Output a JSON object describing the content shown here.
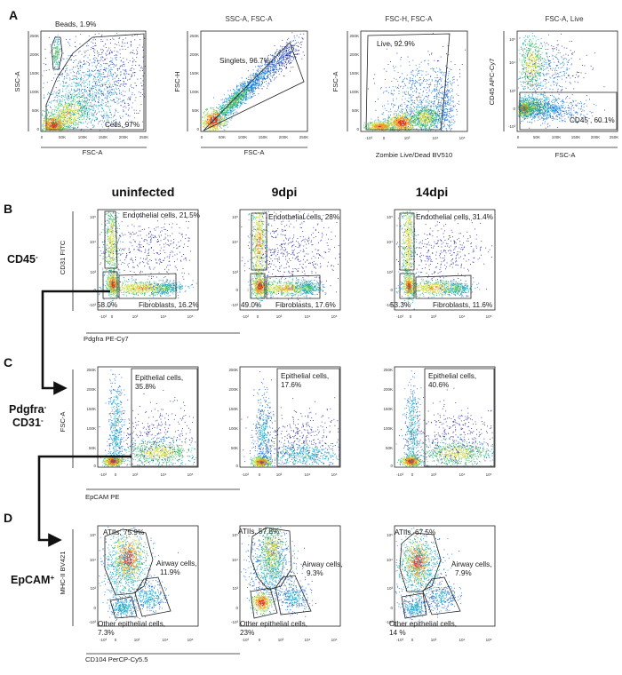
{
  "colors": {
    "frame": "#222222",
    "gate": "#222222",
    "dot": "#2233aa",
    "hot": "#ff2200"
  },
  "panel_A": {
    "letter": "A",
    "plot1": {
      "ylabel": "SSC-A",
      "xlabel": "FSC-A",
      "gate_beads": "Beads, 1.9%",
      "gate_cells": "Cells, 97%",
      "xticks": [
        "0",
        "50K",
        "100K",
        "150K",
        "200K",
        "250K"
      ],
      "yticks": [
        "250K",
        "200K",
        "150K",
        "100K",
        "50K",
        "0"
      ]
    },
    "plot2": {
      "title": "SSC-A, FSC-A",
      "ylabel": "FSC-H",
      "xlabel": "FSC-A",
      "gate_singlets": "Singlets, 96.7%",
      "xticks": [
        "0",
        "50K",
        "100K",
        "150K",
        "200K",
        "250K"
      ],
      "yticks": [
        "250K",
        "200K",
        "150K",
        "100K",
        "50K",
        "0"
      ]
    },
    "plot3": {
      "title": "FSC-H, FSC-A",
      "ylabel": "FSC-A",
      "xlabel": "Zombie Live/Dead BV510",
      "gate_live": "Live, 92.9%",
      "xticks": [
        "-10³",
        "0",
        "10³",
        "10⁴",
        "10⁵"
      ],
      "yticks": [
        "250K",
        "200K",
        "150K",
        "100K",
        "50K",
        "0"
      ]
    },
    "plot4": {
      "title": "FSC-A, Live",
      "ylabel": "CD45  APC-Cy7",
      "xlabel": "FSC-A",
      "gate_cd45_prefix": "CD45",
      "gate_cd45_sup": "-",
      "gate_cd45_value": ", 60.1%",
      "xticks": [
        "0",
        "50K",
        "100K",
        "150K",
        "200K",
        "250K"
      ],
      "yticks": [
        "10⁵",
        "10⁴",
        "10³",
        "0",
        "-10³"
      ]
    }
  },
  "columns": [
    "uninfected",
    "9dpi",
    "14dpi"
  ],
  "panel_B": {
    "letter": "B",
    "row_label": "CD45",
    "row_label_sup": "-",
    "ylabel": "CD31 FITC",
    "xlabel": "Pdgfra PE-Cy7",
    "xticks": [
      "-10³",
      "0",
      "10³",
      "10⁴",
      "10⁵"
    ],
    "yticks": [
      "10⁵",
      "10⁴",
      "10³",
      "0",
      "-10³"
    ],
    "plots": [
      {
        "endothelial": "Endothelial cells, 21.5%",
        "fibroblasts": "Fibroblasts, 16.2%",
        "dn": "58.0%"
      },
      {
        "endothelial": "Endothelial cells, 28%",
        "fibroblasts": "Fibroblasts, 17.6%",
        "dn": "49.0%"
      },
      {
        "endothelial": "Endothelial cells, 31.4%",
        "fibroblasts": "Fibroblasts, 11.6%",
        "dn": "53.3%"
      }
    ]
  },
  "panel_C": {
    "letter": "C",
    "row_label_1": "Pdgfra",
    "row_label_1_sup": "-",
    "row_label_2": "CD31",
    "row_label_2_sup": "-",
    "ylabel": "FSC-A",
    "xlabel": "EpCAM PE",
    "xticks": [
      "-10³",
      "0",
      "10³",
      "10⁴",
      "10⁵"
    ],
    "yticks": [
      "250K",
      "200K",
      "150K",
      "100K",
      "50K",
      "0"
    ],
    "gate_name": "Epithelial cells,",
    "plots": [
      {
        "value": "35.8%"
      },
      {
        "value": "17.6%"
      },
      {
        "value": "40.6%"
      }
    ]
  },
  "panel_D": {
    "letter": "D",
    "row_label": "EpCAM",
    "row_label_sup": "+",
    "ylabel": "MHC-II BV421",
    "xlabel": "CD104 PerCP-Cy5.5",
    "xticks": [
      "-10³",
      "0",
      "10³",
      "10⁴",
      "10⁵"
    ],
    "yticks": [
      "10⁵",
      "10⁴",
      "10³",
      "0",
      "-10³"
    ],
    "airway_name": "Airway cells,",
    "other_name": "Other epithelial cells,",
    "plots": [
      {
        "atii": "ATIIs, 75.9%",
        "airway": "11.9%",
        "other": "7.3%"
      },
      {
        "atii": "ATIIs, 57.8%",
        "airway": "9.3%",
        "other": "23%"
      },
      {
        "atii": "ATIIs, 67.5%",
        "airway": "7.9%",
        "other": "14 %"
      }
    ]
  }
}
